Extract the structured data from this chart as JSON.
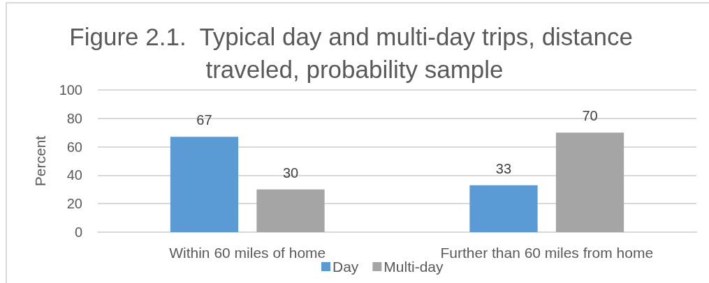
{
  "chart_data": {
    "type": "bar",
    "title": "Figure 2.1.  Typical day and multi-day trips, distance traveled, probability sample",
    "ylabel": "Percent",
    "categories": [
      "Within 60 miles of home",
      "Further than 60 miles from home"
    ],
    "series": [
      {
        "name": "Day",
        "color": "#5b9bd5",
        "values": [
          67,
          33
        ]
      },
      {
        "name": "Multi-day",
        "color": "#a5a5a5",
        "values": [
          30,
          70
        ]
      }
    ],
    "ylim": [
      0,
      100
    ],
    "yticks": [
      0,
      20,
      40,
      60,
      80,
      100
    ],
    "grid": "y",
    "legend": "bottom",
    "data_labels": true
  }
}
